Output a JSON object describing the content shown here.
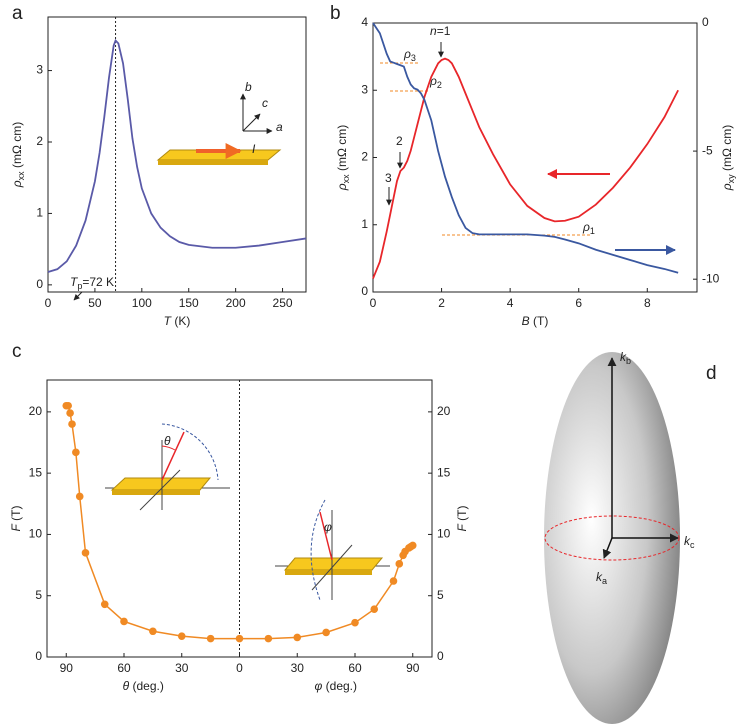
{
  "chart_data": [
    {
      "type": "line",
      "panel": "a",
      "x_label": {
        "italic": "T",
        "text": " (K)"
      },
      "y_label": {
        "italic": "ρ",
        "sub": "xx",
        "text": " (mΩ cm)"
      },
      "x": [
        0,
        10,
        20,
        30,
        40,
        50,
        55,
        60,
        65,
        70,
        72,
        75,
        80,
        85,
        90,
        95,
        100,
        110,
        120,
        130,
        140,
        150,
        175,
        200,
        225,
        250,
        275
      ],
      "series": [
        {
          "color": "#5a5aa8",
          "values": [
            0.18,
            0.22,
            0.33,
            0.55,
            0.9,
            1.45,
            1.85,
            2.35,
            2.9,
            3.35,
            3.42,
            3.38,
            3.1,
            2.6,
            2.05,
            1.65,
            1.35,
            1.0,
            0.8,
            0.68,
            0.6,
            0.56,
            0.52,
            0.52,
            0.55,
            0.6,
            0.65
          ]
        }
      ],
      "xlim": [
        0,
        275
      ],
      "ylim": [
        -0.1,
        3.75
      ],
      "xticks": [
        0,
        50,
        100,
        150,
        200,
        250
      ],
      "yticks": [
        0,
        1,
        2,
        3
      ],
      "vline": 72,
      "annotation": {
        "italic": "T",
        "sub": "p",
        "text": "=72 K"
      },
      "inset_labels": [
        "b",
        "c",
        "a",
        "I"
      ]
    },
    {
      "type": "line",
      "panel": "b",
      "x_label": {
        "italic": "B",
        "text": " (T)"
      },
      "y_label": {
        "italic": "ρ",
        "sub": "xx",
        "text": " (mΩ cm)"
      },
      "y2_label": {
        "italic": "ρ",
        "sub": "xy",
        "text": " (mΩ cm)"
      },
      "x": [
        0,
        0.2,
        0.4,
        0.5,
        0.6,
        0.7,
        0.8,
        0.9,
        1.0,
        1.1,
        1.2,
        1.3,
        1.4,
        1.5,
        1.6,
        1.7,
        1.8,
        1.9,
        2.0,
        2.1,
        2.2,
        2.3,
        2.5,
        2.7,
        2.9,
        3.1,
        3.5,
        4,
        4.5,
        5,
        5.3,
        5.6,
        6,
        6.5,
        7,
        7.5,
        8,
        8.5,
        8.9
      ],
      "series": [
        {
          "color": "#e8262a",
          "values": [
            0.2,
            0.45,
            0.9,
            1.15,
            1.4,
            1.65,
            1.8,
            1.85,
            1.95,
            2.1,
            2.3,
            2.5,
            2.7,
            2.9,
            3.05,
            3.2,
            3.3,
            3.4,
            3.45,
            3.47,
            3.45,
            3.4,
            3.2,
            2.95,
            2.7,
            2.45,
            2.05,
            1.6,
            1.28,
            1.1,
            1.05,
            1.06,
            1.12,
            1.3,
            1.55,
            1.85,
            2.2,
            2.6,
            3.0
          ]
        },
        {
          "color": "#3a58a0",
          "axis": "y2",
          "values": [
            0,
            -0.4,
            -1.2,
            -1.5,
            -1.55,
            -1.6,
            -1.65,
            -1.7,
            -2.1,
            -2.4,
            -2.55,
            -2.6,
            -2.75,
            -3.0,
            -3.4,
            -3.8,
            -4.4,
            -5.0,
            -5.5,
            -6.0,
            -6.4,
            -6.8,
            -7.5,
            -8.0,
            -8.2,
            -8.25,
            -8.25,
            -8.25,
            -8.25,
            -8.3,
            -8.35,
            -8.45,
            -8.6,
            -8.85,
            -9.05,
            -9.25,
            -9.45,
            -9.6,
            -9.75
          ]
        }
      ],
      "xlim": [
        0,
        9.45
      ],
      "ylim": [
        0,
        4
      ],
      "y2lim": [
        -10.5,
        0
      ],
      "xticks": [
        0,
        2,
        4,
        6,
        8
      ],
      "yticks": [
        0,
        1,
        2,
        3,
        4
      ],
      "y2ticks": [
        0,
        -5,
        -10
      ],
      "annotations": [
        {
          "italic": "ρ",
          "sub": "3"
        },
        {
          "italic": "ρ",
          "sub": "2"
        },
        {
          "italic": "ρ",
          "sub": "1"
        },
        {
          "italic": "n",
          "text": "=1"
        },
        "2",
        "3"
      ]
    },
    {
      "type": "line",
      "panel": "c",
      "markers": true,
      "x_labels": [
        {
          "italic": "θ",
          "text": " (deg.)"
        },
        {
          "italic": "φ",
          "text": " (deg.)"
        }
      ],
      "y_label": {
        "italic": "F",
        "text": " (T)"
      },
      "y2_label": {
        "italic": "F",
        "text": " (T)"
      },
      "x": [
        -90,
        -89,
        -88,
        -87,
        -85,
        -83,
        -80,
        -70,
        -60,
        -45,
        -30,
        -15,
        0,
        15,
        30,
        45,
        60,
        70,
        80,
        83,
        85,
        86,
        88,
        89,
        90
      ],
      "series": [
        {
          "color": "#f08a24",
          "values": [
            20.5,
            20.5,
            19.9,
            19.0,
            16.7,
            13.1,
            8.5,
            4.3,
            2.9,
            2.1,
            1.7,
            1.5,
            1.5,
            1.5,
            1.6,
            2.0,
            2.8,
            3.9,
            6.2,
            7.6,
            8.3,
            8.6,
            8.9,
            9.0,
            9.1
          ]
        }
      ],
      "xlim": [
        -100,
        100
      ],
      "ylim": [
        0,
        22.6
      ],
      "y2lim": [
        0,
        22.6
      ],
      "xticks": [
        {
          "value": -90,
          "label": "90"
        },
        {
          "value": -60,
          "label": "60"
        },
        {
          "value": -30,
          "label": "30"
        },
        0,
        30,
        60,
        90
      ],
      "yticks": [
        0,
        5,
        10,
        15,
        20
      ],
      "y2ticks": [
        0,
        5,
        10,
        15,
        20
      ],
      "vline": 0,
      "inset_labels": [
        "θ",
        "φ"
      ]
    }
  ],
  "diagram": {
    "panel": "d",
    "labels": [
      {
        "italic": "k",
        "sub": "b"
      },
      {
        "italic": "k",
        "sub": "c"
      },
      {
        "italic": "k",
        "sub": "a"
      }
    ]
  }
}
